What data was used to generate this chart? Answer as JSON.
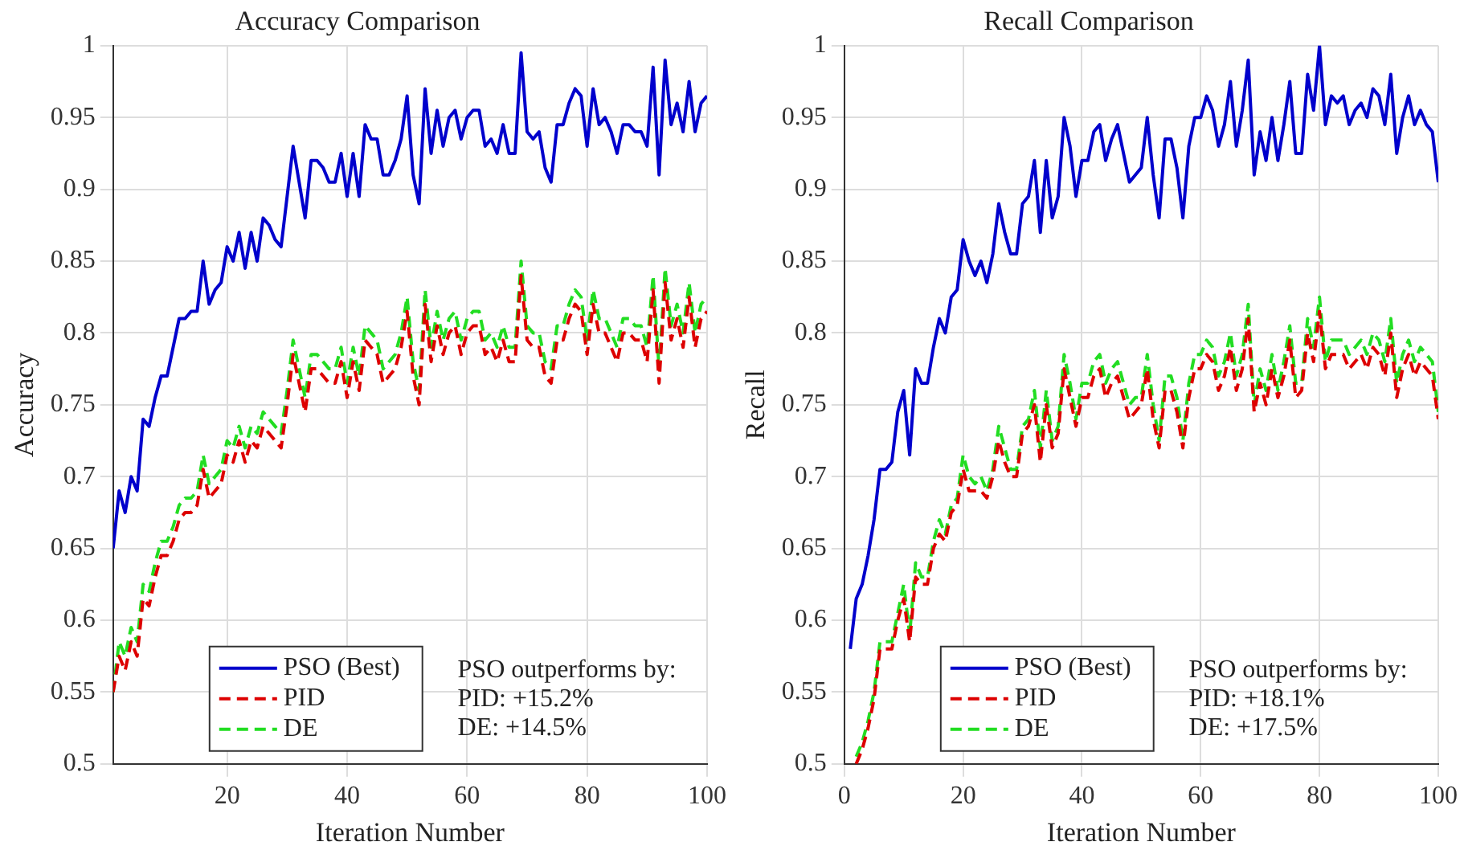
{
  "chart_data": [
    {
      "type": "line",
      "title": "Accuracy Comparison",
      "xlabel": "Iteration Number",
      "ylabel": "Accuracy",
      "xlim": [
        1,
        100
      ],
      "xticks": [
        20,
        40,
        60,
        80,
        100
      ],
      "ylim": [
        0.5,
        1
      ],
      "yticks": [
        0.5,
        0.55,
        0.6,
        0.65,
        0.7,
        0.75,
        0.8,
        0.85,
        0.9,
        0.95,
        1
      ],
      "grid": true,
      "legend": "bottom left",
      "marker": "none",
      "x": [
        1,
        2,
        3,
        4,
        5,
        6,
        7,
        8,
        9,
        10,
        11,
        12,
        13,
        14,
        15,
        16,
        17,
        18,
        19,
        20,
        21,
        22,
        23,
        24,
        25,
        26,
        27,
        28,
        29,
        30,
        31,
        32,
        33,
        34,
        35,
        36,
        37,
        38,
        39,
        40,
        41,
        42,
        43,
        44,
        45,
        46,
        47,
        48,
        49,
        50,
        51,
        52,
        53,
        54,
        55,
        56,
        57,
        58,
        59,
        60,
        61,
        62,
        63,
        64,
        65,
        66,
        67,
        68,
        69,
        70,
        71,
        72,
        73,
        74,
        75,
        76,
        77,
        78,
        79,
        80,
        81,
        82,
        83,
        84,
        85,
        86,
        87,
        88,
        89,
        90,
        91,
        92,
        93,
        94,
        95,
        96,
        97,
        98,
        99,
        100
      ],
      "series": [
        {
          "name": "PSO (Best)",
          "color": "#0000cc",
          "line_style": "solid",
          "values": [
            0.65,
            0.69,
            0.675,
            0.7,
            0.69,
            0.74,
            0.735,
            0.755,
            0.77,
            0.77,
            0.79,
            0.81,
            0.81,
            0.815,
            0.815,
            0.85,
            0.82,
            0.83,
            0.835,
            0.86,
            0.85,
            0.87,
            0.845,
            0.87,
            0.85,
            0.88,
            0.875,
            0.865,
            0.86,
            0.895,
            0.93,
            0.905,
            0.88,
            0.92,
            0.92,
            0.915,
            0.905,
            0.905,
            0.925,
            0.895,
            0.925,
            0.895,
            0.945,
            0.935,
            0.935,
            0.91,
            0.91,
            0.92,
            0.935,
            0.965,
            0.91,
            0.89,
            0.97,
            0.925,
            0.955,
            0.93,
            0.95,
            0.955,
            0.935,
            0.95,
            0.955,
            0.955,
            0.93,
            0.935,
            0.925,
            0.945,
            0.925,
            0.925,
            0.995,
            0.94,
            0.935,
            0.94,
            0.915,
            0.905,
            0.945,
            0.945,
            0.96,
            0.97,
            0.965,
            0.93,
            0.97,
            0.945,
            0.95,
            0.94,
            0.925,
            0.945,
            0.945,
            0.94,
            0.94,
            0.93,
            0.985,
            0.91,
            0.99,
            0.945,
            0.96,
            0.94,
            0.975,
            0.94,
            0.96,
            0.965
          ]
        },
        {
          "name": "PID",
          "color": "#dd0000",
          "line_style": "dashed",
          "values": [
            0.55,
            0.575,
            0.565,
            0.585,
            0.575,
            0.615,
            0.61,
            0.63,
            0.645,
            0.645,
            0.655,
            0.67,
            0.675,
            0.675,
            0.68,
            0.705,
            0.685,
            0.69,
            0.695,
            0.715,
            0.71,
            0.725,
            0.71,
            0.725,
            0.72,
            0.735,
            0.73,
            0.725,
            0.72,
            0.75,
            0.785,
            0.765,
            0.745,
            0.775,
            0.775,
            0.77,
            0.765,
            0.765,
            0.78,
            0.755,
            0.78,
            0.76,
            0.795,
            0.79,
            0.785,
            0.765,
            0.77,
            0.775,
            0.79,
            0.815,
            0.77,
            0.75,
            0.82,
            0.78,
            0.805,
            0.785,
            0.8,
            0.805,
            0.785,
            0.8,
            0.805,
            0.805,
            0.785,
            0.79,
            0.78,
            0.795,
            0.78,
            0.78,
            0.84,
            0.795,
            0.79,
            0.79,
            0.77,
            0.765,
            0.795,
            0.795,
            0.81,
            0.82,
            0.815,
            0.785,
            0.82,
            0.8,
            0.8,
            0.79,
            0.78,
            0.8,
            0.8,
            0.795,
            0.795,
            0.78,
            0.83,
            0.765,
            0.835,
            0.795,
            0.81,
            0.79,
            0.825,
            0.79,
            0.81,
            0.815
          ]
        },
        {
          "name": "DE",
          "color": "#22dd22",
          "line_style": "dashed",
          "values": [
            0.55,
            0.585,
            0.575,
            0.595,
            0.585,
            0.625,
            0.62,
            0.64,
            0.655,
            0.655,
            0.665,
            0.68,
            0.685,
            0.685,
            0.69,
            0.715,
            0.695,
            0.7,
            0.705,
            0.725,
            0.72,
            0.735,
            0.72,
            0.735,
            0.73,
            0.745,
            0.74,
            0.735,
            0.73,
            0.76,
            0.795,
            0.775,
            0.755,
            0.785,
            0.785,
            0.78,
            0.775,
            0.775,
            0.79,
            0.765,
            0.79,
            0.77,
            0.805,
            0.8,
            0.795,
            0.775,
            0.78,
            0.785,
            0.8,
            0.825,
            0.78,
            0.76,
            0.83,
            0.79,
            0.815,
            0.795,
            0.81,
            0.815,
            0.795,
            0.81,
            0.815,
            0.815,
            0.795,
            0.8,
            0.79,
            0.805,
            0.79,
            0.79,
            0.85,
            0.805,
            0.8,
            0.8,
            0.78,
            0.775,
            0.805,
            0.805,
            0.82,
            0.83,
            0.825,
            0.795,
            0.83,
            0.81,
            0.81,
            0.8,
            0.79,
            0.81,
            0.81,
            0.805,
            0.805,
            0.79,
            0.84,
            0.775,
            0.845,
            0.805,
            0.82,
            0.8,
            0.835,
            0.8,
            0.82,
            0.825
          ]
        }
      ],
      "annotations": [
        "PSO outperforms by:",
        "PID: +15.2%",
        "DE: +14.5%"
      ]
    },
    {
      "type": "line",
      "title": "Recall Comparison",
      "xlabel": "Iteration Number",
      "ylabel": "Recall",
      "xlim": [
        0,
        100
      ],
      "xticks": [
        0,
        20,
        40,
        60,
        80,
        100
      ],
      "ylim": [
        0.5,
        1
      ],
      "yticks": [
        0.5,
        0.55,
        0.6,
        0.65,
        0.7,
        0.75,
        0.8,
        0.85,
        0.9,
        0.95,
        1
      ],
      "grid": true,
      "legend": "bottom left",
      "marker": "none",
      "x": [
        1,
        2,
        3,
        4,
        5,
        6,
        7,
        8,
        9,
        10,
        11,
        12,
        13,
        14,
        15,
        16,
        17,
        18,
        19,
        20,
        21,
        22,
        23,
        24,
        25,
        26,
        27,
        28,
        29,
        30,
        31,
        32,
        33,
        34,
        35,
        36,
        37,
        38,
        39,
        40,
        41,
        42,
        43,
        44,
        45,
        46,
        47,
        48,
        49,
        50,
        51,
        52,
        53,
        54,
        55,
        56,
        57,
        58,
        59,
        60,
        61,
        62,
        63,
        64,
        65,
        66,
        67,
        68,
        69,
        70,
        71,
        72,
        73,
        74,
        75,
        76,
        77,
        78,
        79,
        80,
        81,
        82,
        83,
        84,
        85,
        86,
        87,
        88,
        89,
        90,
        91,
        92,
        93,
        94,
        95,
        96,
        97,
        98,
        99,
        100
      ],
      "series": [
        {
          "name": "PSO (Best)",
          "color": "#0000cc",
          "line_style": "solid",
          "values": [
            0.58,
            0.615,
            0.625,
            0.645,
            0.67,
            0.705,
            0.705,
            0.71,
            0.745,
            0.76,
            0.715,
            0.775,
            0.765,
            0.765,
            0.79,
            0.81,
            0.8,
            0.825,
            0.83,
            0.865,
            0.85,
            0.84,
            0.85,
            0.835,
            0.855,
            0.89,
            0.87,
            0.855,
            0.855,
            0.89,
            0.895,
            0.92,
            0.87,
            0.92,
            0.88,
            0.895,
            0.95,
            0.93,
            0.895,
            0.92,
            0.92,
            0.94,
            0.945,
            0.92,
            0.935,
            0.945,
            0.925,
            0.905,
            0.91,
            0.915,
            0.95,
            0.91,
            0.88,
            0.935,
            0.935,
            0.915,
            0.88,
            0.93,
            0.95,
            0.95,
            0.965,
            0.955,
            0.93,
            0.945,
            0.975,
            0.93,
            0.955,
            0.99,
            0.91,
            0.94,
            0.92,
            0.95,
            0.92,
            0.945,
            0.975,
            0.925,
            0.925,
            0.98,
            0.955,
            1,
            0.945,
            0.965,
            0.96,
            0.965,
            0.945,
            0.955,
            0.96,
            0.95,
            0.97,
            0.965,
            0.945,
            0.98,
            0.925,
            0.95,
            0.965,
            0.945,
            0.955,
            0.945,
            0.94,
            0.905
          ]
        },
        {
          "name": "PID",
          "color": "#dd0000",
          "line_style": "dashed",
          "values": [
            null,
            0.5,
            0.51,
            0.525,
            0.545,
            0.58,
            0.58,
            0.58,
            0.6,
            0.615,
            0.585,
            0.63,
            0.625,
            0.625,
            0.65,
            0.66,
            0.655,
            0.675,
            0.68,
            0.705,
            0.69,
            0.69,
            0.69,
            0.685,
            0.7,
            0.725,
            0.71,
            0.7,
            0.7,
            0.73,
            0.735,
            0.75,
            0.71,
            0.75,
            0.72,
            0.73,
            0.775,
            0.755,
            0.735,
            0.755,
            0.755,
            0.77,
            0.775,
            0.755,
            0.765,
            0.77,
            0.755,
            0.74,
            0.745,
            0.75,
            0.775,
            0.74,
            0.72,
            0.76,
            0.76,
            0.745,
            0.72,
            0.755,
            0.775,
            0.775,
            0.785,
            0.78,
            0.76,
            0.77,
            0.79,
            0.76,
            0.775,
            0.81,
            0.745,
            0.765,
            0.75,
            0.775,
            0.755,
            0.77,
            0.795,
            0.755,
            0.76,
            0.8,
            0.78,
            0.815,
            0.775,
            0.785,
            0.785,
            0.785,
            0.775,
            0.78,
            0.785,
            0.775,
            0.79,
            0.785,
            0.77,
            0.8,
            0.755,
            0.775,
            0.785,
            0.77,
            0.78,
            0.775,
            0.77,
            0.74
          ]
        },
        {
          "name": "DE",
          "color": "#22dd22",
          "line_style": "dashed",
          "values": [
            null,
            0.505,
            0.515,
            0.53,
            0.55,
            0.585,
            0.585,
            0.585,
            0.605,
            0.625,
            0.59,
            0.64,
            0.63,
            0.63,
            0.655,
            0.67,
            0.66,
            0.68,
            0.685,
            0.715,
            0.7,
            0.695,
            0.7,
            0.69,
            0.705,
            0.735,
            0.72,
            0.705,
            0.705,
            0.735,
            0.74,
            0.76,
            0.72,
            0.76,
            0.725,
            0.735,
            0.785,
            0.765,
            0.74,
            0.765,
            0.765,
            0.78,
            0.785,
            0.765,
            0.775,
            0.78,
            0.765,
            0.75,
            0.755,
            0.755,
            0.785,
            0.75,
            0.725,
            0.77,
            0.77,
            0.755,
            0.725,
            0.765,
            0.785,
            0.785,
            0.795,
            0.79,
            0.77,
            0.78,
            0.8,
            0.77,
            0.785,
            0.82,
            0.75,
            0.775,
            0.76,
            0.785,
            0.76,
            0.78,
            0.805,
            0.765,
            0.765,
            0.81,
            0.79,
            0.825,
            0.78,
            0.795,
            0.795,
            0.795,
            0.785,
            0.79,
            0.795,
            0.785,
            0.8,
            0.795,
            0.78,
            0.81,
            0.765,
            0.785,
            0.795,
            0.78,
            0.79,
            0.785,
            0.78,
            0.745
          ]
        }
      ],
      "annotations": [
        "PSO outperforms by:",
        "PID: +18.1%",
        "DE: +17.5%"
      ]
    }
  ]
}
